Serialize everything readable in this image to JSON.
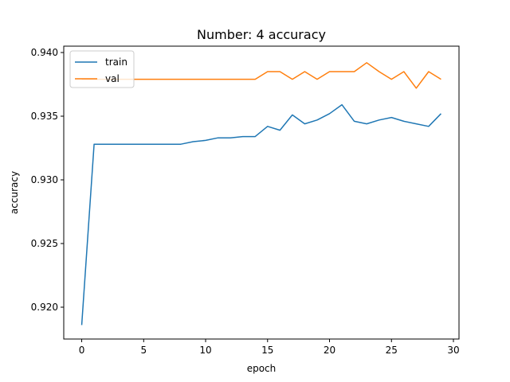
{
  "chart_data": {
    "type": "line",
    "title": "Number: 4 accuracy",
    "xlabel": "epoch",
    "ylabel": "accuracy",
    "xlim": [
      -1.45,
      30.45
    ],
    "ylim": [
      0.9175,
      0.9405
    ],
    "xticks": [
      0,
      5,
      10,
      15,
      20,
      25,
      30
    ],
    "xtick_labels": [
      "0",
      "5",
      "10",
      "15",
      "20",
      "25",
      "30"
    ],
    "yticks": [
      0.92,
      0.925,
      0.93,
      0.935,
      0.94
    ],
    "ytick_labels": [
      "0.920",
      "0.925",
      "0.930",
      "0.935",
      "0.940"
    ],
    "grid": false,
    "legend_position": "top-left",
    "x": [
      0,
      1,
      2,
      3,
      4,
      5,
      6,
      7,
      8,
      9,
      10,
      11,
      12,
      13,
      14,
      15,
      16,
      17,
      18,
      19,
      20,
      21,
      22,
      23,
      24,
      25,
      26,
      27,
      28,
      29
    ],
    "series": [
      {
        "name": "train",
        "color": "#1f77b4",
        "values": [
          0.9186,
          0.9328,
          0.9328,
          0.9328,
          0.9328,
          0.9328,
          0.9328,
          0.9328,
          0.9328,
          0.933,
          0.9331,
          0.9333,
          0.9333,
          0.9334,
          0.9334,
          0.9342,
          0.9339,
          0.9351,
          0.9344,
          0.9347,
          0.9352,
          0.9359,
          0.9346,
          0.9344,
          0.9347,
          0.9349,
          0.9346,
          0.9344,
          0.9342,
          0.9352
        ]
      },
      {
        "name": "val",
        "color": "#ff7f0e",
        "values": [
          0.9379,
          0.9379,
          0.9379,
          0.9379,
          0.9379,
          0.9379,
          0.9379,
          0.9379,
          0.9379,
          0.9379,
          0.9379,
          0.9379,
          0.9379,
          0.9379,
          0.9379,
          0.9385,
          0.9385,
          0.9379,
          0.9385,
          0.9379,
          0.9385,
          0.9385,
          0.9385,
          0.9392,
          0.9385,
          0.9379,
          0.9385,
          0.9372,
          0.9385,
          0.9379
        ]
      }
    ]
  }
}
